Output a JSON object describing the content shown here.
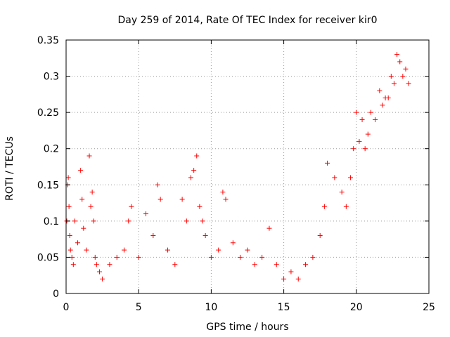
{
  "chart_data": {
    "type": "scatter",
    "title": "Day 259 of 2014, Rate Of TEC Index for receiver kir0",
    "xlabel": "GPS time / hours",
    "ylabel": "ROTI / TECUs",
    "xlim": [
      0,
      25
    ],
    "ylim": [
      0,
      0.35
    ],
    "x_ticks": [
      "0",
      "5",
      "10",
      "15",
      "20",
      "25"
    ],
    "y_ticks": [
      "0",
      "0.05",
      "0.1",
      "0.15",
      "0.2",
      "0.25",
      "0.3",
      "0.35"
    ],
    "grid": true,
    "legend": "none",
    "marker": "+",
    "color": "#ff0000",
    "series": [
      {
        "x": [
          0.05,
          0.1,
          0.15,
          0.2,
          0.25,
          0.3,
          0.4,
          0.5,
          0.6,
          0.8,
          1.0,
          1.1,
          1.2,
          1.4,
          1.6,
          1.7,
          1.8,
          1.9,
          2.0,
          2.1,
          2.3,
          2.5,
          3.0,
          3.5,
          4.0,
          4.3,
          4.5,
          5.0,
          5.5,
          6.0,
          6.3,
          6.5,
          7.0,
          7.5,
          8.0,
          8.3,
          8.6,
          8.8,
          9.0,
          9.2,
          9.4,
          9.6,
          10.0,
          10.5,
          10.8,
          11.0,
          11.5,
          12.0,
          12.5,
          13.0,
          13.5,
          14.0,
          14.5,
          15.0,
          15.5,
          16.0,
          16.5,
          17.0,
          17.5,
          17.8,
          18.0,
          18.5,
          19.0,
          19.3,
          19.6,
          19.8,
          20.0,
          20.2,
          20.4,
          20.6,
          20.8,
          21.0,
          21.3,
          21.6,
          21.8,
          22.0,
          22.2,
          22.4,
          22.6,
          22.8,
          23.0,
          23.2,
          23.4,
          23.6
        ],
        "y": [
          0.1,
          0.15,
          0.16,
          0.12,
          0.08,
          0.06,
          0.05,
          0.04,
          0.1,
          0.07,
          0.17,
          0.13,
          0.09,
          0.06,
          0.19,
          0.12,
          0.14,
          0.1,
          0.05,
          0.04,
          0.03,
          0.02,
          0.04,
          0.05,
          0.06,
          0.1,
          0.12,
          0.05,
          0.11,
          0.08,
          0.15,
          0.13,
          0.06,
          0.04,
          0.13,
          0.1,
          0.16,
          0.17,
          0.19,
          0.12,
          0.1,
          0.08,
          0.05,
          0.06,
          0.14,
          0.13,
          0.07,
          0.05,
          0.06,
          0.04,
          0.05,
          0.09,
          0.04,
          0.02,
          0.03,
          0.02,
          0.04,
          0.05,
          0.08,
          0.12,
          0.18,
          0.16,
          0.14,
          0.12,
          0.16,
          0.2,
          0.25,
          0.21,
          0.24,
          0.2,
          0.22,
          0.25,
          0.24,
          0.28,
          0.26,
          0.27,
          0.27,
          0.3,
          0.29,
          0.33,
          0.32,
          0.3,
          0.31,
          0.29
        ]
      }
    ]
  }
}
